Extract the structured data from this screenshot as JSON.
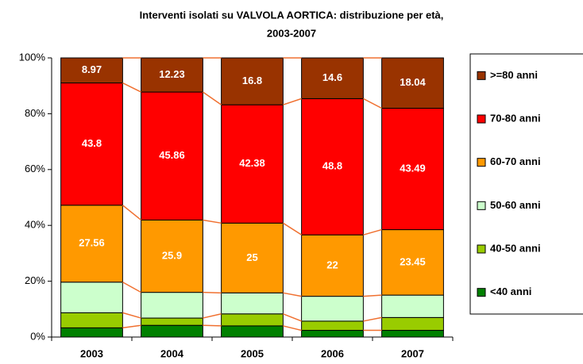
{
  "chart_data": {
    "type": "stacked_bar_100",
    "title": [
      "Interventi isolati su VALVOLA AORTICA: distribuzione per età,",
      "2003-2007"
    ],
    "categories": [
      "2003",
      "2004",
      "2005",
      "2006",
      "2007"
    ],
    "series": [
      {
        "name": "<40 anni",
        "color": "#008000",
        "values": [
          3.3,
          4.2,
          4.0,
          2.4,
          2.4
        ],
        "labels": false
      },
      {
        "name": "40-50 anni",
        "color": "#99cc00",
        "values": [
          5.4,
          2.6,
          4.3,
          3.3,
          4.6
        ],
        "labels": false
      },
      {
        "name": "50-60 anni",
        "color": "#ccffcc",
        "values": [
          10.97,
          9.21,
          7.52,
          8.9,
          8.02
        ],
        "labels": false
      },
      {
        "name": "60-70 anni",
        "color": "#ff9900",
        "values": [
          27.56,
          25.9,
          25,
          22,
          23.45
        ],
        "labels": true
      },
      {
        "name": "70-80 anni",
        "color": "#ff0000",
        "values": [
          43.8,
          45.86,
          42.38,
          48.8,
          43.49
        ],
        "labels": true
      },
      {
        "name": ">=80 anni",
        "color": "#993300",
        "values": [
          8.97,
          12.23,
          16.8,
          14.6,
          18.04
        ],
        "labels": true
      }
    ],
    "ylim": [
      0,
      100
    ],
    "yticks": [
      {
        "value": 0,
        "label": "0%"
      },
      {
        "value": 20,
        "label": "20%"
      },
      {
        "value": 40,
        "label": "40%"
      },
      {
        "value": 60,
        "label": "60%"
      },
      {
        "value": 80,
        "label": "80%"
      },
      {
        "value": 100,
        "label": "100%"
      }
    ],
    "connector_color": "#f07030",
    "legend": "right"
  }
}
